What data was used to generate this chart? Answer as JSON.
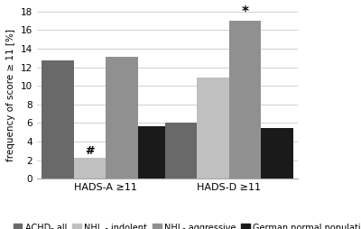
{
  "groups": [
    "HADS-A ≥11",
    "HADS-D ≥11"
  ],
  "categories": [
    "ACHD- all",
    "NHL - indolent",
    "NHL- aggressive",
    "German normal population"
  ],
  "colors": [
    "#696969",
    "#c0c0c0",
    "#909090",
    "#1a1a1a"
  ],
  "values_group0": [
    12.7,
    2.2,
    13.1,
    5.6
  ],
  "values_group1": [
    6.0,
    10.9,
    17.0,
    5.4
  ],
  "ylim": [
    0,
    18
  ],
  "yticks": [
    0,
    2,
    4,
    6,
    8,
    10,
    12,
    14,
    16,
    18
  ],
  "ylabel": "frequency of score ≥ 11 [%]",
  "ann0_symbol": "#",
  "ann0_bar": 1,
  "ann1_symbol": "*",
  "ann1_bar": 2,
  "bar_width": 0.13,
  "group_centers": [
    0.28,
    0.78
  ],
  "xlim": [
    0.0,
    1.06
  ],
  "legend_fontsize": 7.0,
  "ylabel_fontsize": 7.5,
  "tick_fontsize": 7.5,
  "xlabel_fontsize": 8.0,
  "background_color": "#ffffff",
  "grid_color": "#d0d0d0"
}
